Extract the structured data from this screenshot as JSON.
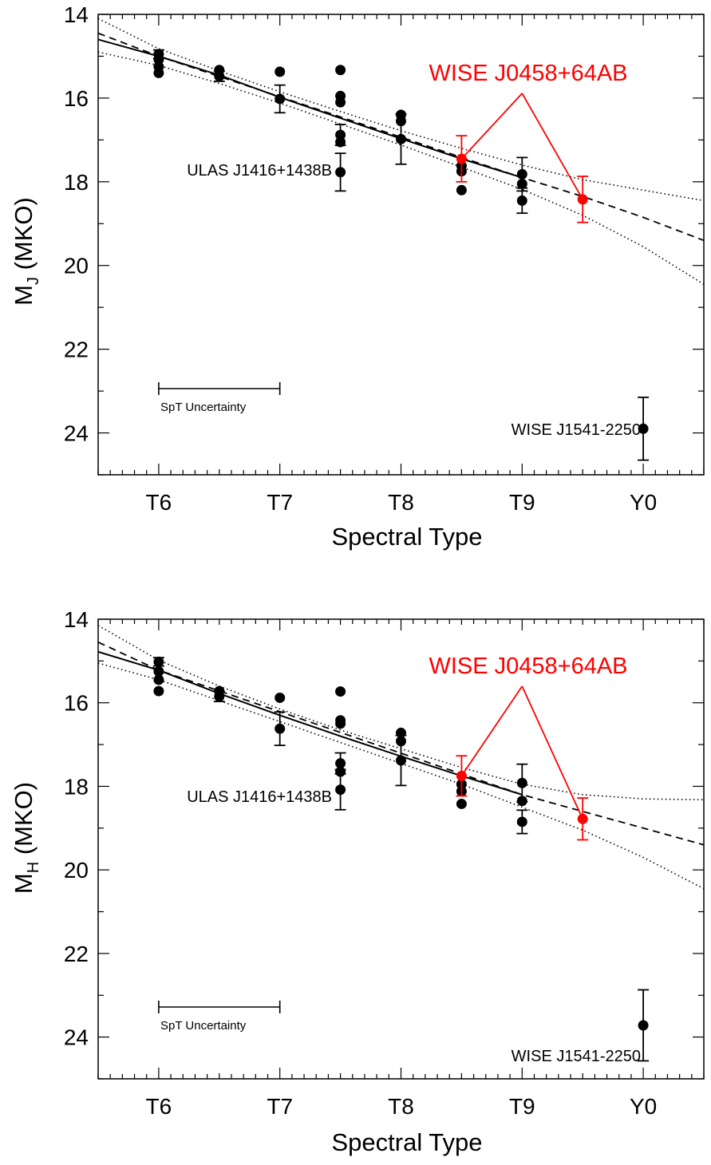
{
  "chart_data": [
    {
      "type": "scatter",
      "panel": "top",
      "xlabel": "Spectral Type",
      "ylabel": "M",
      "ylabel_sub": "J",
      "ylabel_suffix": " (MKO)",
      "xlim": [
        5.5,
        10.5
      ],
      "ylim": [
        25,
        14
      ],
      "y_inverted": true,
      "x_ticks": [
        {
          "value": 6,
          "label": "T6"
        },
        {
          "value": 7,
          "label": "T7"
        },
        {
          "value": 8,
          "label": "T8"
        },
        {
          "value": 9,
          "label": "T9"
        },
        {
          "value": 10,
          "label": "Y0"
        }
      ],
      "y_ticks": [
        {
          "value": 14,
          "label": "14"
        },
        {
          "value": 16,
          "label": "16"
        },
        {
          "value": 18,
          "label": "18"
        },
        {
          "value": 20,
          "label": "20"
        },
        {
          "value": 22,
          "label": "22"
        },
        {
          "value": 24,
          "label": "24"
        }
      ],
      "series": [
        {
          "color": "#000000",
          "points": [
            {
              "x": 6.0,
              "y": 14.95,
              "err": 0.1
            },
            {
              "x": 6.0,
              "y": 15.08
            },
            {
              "x": 6.0,
              "y": 15.25
            },
            {
              "x": 6.0,
              "y": 15.4
            },
            {
              "x": 6.5,
              "y": 15.33
            },
            {
              "x": 6.5,
              "y": 15.48,
              "err": 0.12
            },
            {
              "x": 7.0,
              "y": 15.37
            },
            {
              "x": 7.0,
              "y": 16.02,
              "err": 0.33
            },
            {
              "x": 7.5,
              "y": 15.33
            },
            {
              "x": 7.5,
              "y": 15.95
            },
            {
              "x": 7.5,
              "y": 16.1
            },
            {
              "x": 7.5,
              "y": 16.88,
              "err": 0.25
            },
            {
              "x": 7.5,
              "y": 17.05
            },
            {
              "x": 7.5,
              "y": 17.77,
              "err": 0.45
            },
            {
              "x": 8.0,
              "y": 16.4
            },
            {
              "x": 8.0,
              "y": 16.55
            },
            {
              "x": 8.0,
              "y": 16.98,
              "err": 0.6
            },
            {
              "x": 8.5,
              "y": 17.62
            },
            {
              "x": 8.5,
              "y": 17.75
            },
            {
              "x": 8.5,
              "y": 18.2
            },
            {
              "x": 9.0,
              "y": 17.82,
              "err": 0.4
            },
            {
              "x": 9.0,
              "y": 18.05
            },
            {
              "x": 9.0,
              "y": 18.45,
              "err": 0.3
            },
            {
              "x": 10.0,
              "y": 23.9,
              "err": 0.75
            }
          ]
        },
        {
          "name": "WISE J0458+64AB",
          "color": "#ff0000",
          "points": [
            {
              "x": 8.5,
              "y": 17.45,
              "err": 0.55
            },
            {
              "x": 9.5,
              "y": 18.42,
              "err": 0.55
            }
          ]
        }
      ],
      "fit": {
        "solid": [
          [
            5.5,
            14.6
          ],
          [
            6.0,
            15.0
          ],
          [
            6.5,
            15.45
          ],
          [
            7.0,
            15.98
          ],
          [
            7.5,
            16.48
          ],
          [
            8.0,
            16.97
          ],
          [
            8.5,
            17.45
          ],
          [
            9.0,
            17.9
          ]
        ],
        "dashed": [
          [
            5.5,
            14.45
          ],
          [
            6.0,
            15.0
          ],
          [
            9.0,
            17.9
          ],
          [
            9.5,
            18.35
          ],
          [
            10.0,
            18.85
          ],
          [
            10.5,
            19.4
          ]
        ],
        "dotted_upper": [
          [
            5.5,
            14.1
          ],
          [
            6.0,
            14.82
          ],
          [
            6.5,
            15.35
          ],
          [
            7.0,
            15.85
          ],
          [
            7.5,
            16.32
          ],
          [
            8.0,
            16.78
          ],
          [
            8.5,
            17.2
          ],
          [
            9.0,
            17.6
          ],
          [
            9.5,
            17.95
          ],
          [
            10.0,
            18.2
          ],
          [
            10.5,
            18.45
          ]
        ],
        "dotted_lower": [
          [
            5.5,
            14.9
          ],
          [
            6.0,
            15.22
          ],
          [
            6.5,
            15.65
          ],
          [
            7.0,
            16.12
          ],
          [
            7.5,
            16.62
          ],
          [
            8.0,
            17.12
          ],
          [
            8.5,
            17.65
          ],
          [
            9.0,
            18.18
          ],
          [
            9.5,
            18.8
          ],
          [
            10.0,
            19.55
          ],
          [
            10.5,
            20.45
          ]
        ]
      },
      "annotations": {
        "wise_j0458": "WISE J0458+64AB",
        "ulas": "ULAS J1416+1438B",
        "wise_j1541": "WISE J1541-2250",
        "spt_uncertainty": "SpT Uncertainty"
      }
    },
    {
      "type": "scatter",
      "panel": "bottom",
      "xlabel": "Spectral Type",
      "ylabel": "M",
      "ylabel_sub": "H",
      "ylabel_suffix": " (MKO)",
      "xlim": [
        5.5,
        10.5
      ],
      "ylim": [
        25,
        14
      ],
      "y_inverted": true,
      "x_ticks": [
        {
          "value": 6,
          "label": "T6"
        },
        {
          "value": 7,
          "label": "T7"
        },
        {
          "value": 8,
          "label": "T8"
        },
        {
          "value": 9,
          "label": "T9"
        },
        {
          "value": 10,
          "label": "Y0"
        }
      ],
      "y_ticks": [
        {
          "value": 14,
          "label": "14"
        },
        {
          "value": 16,
          "label": "16"
        },
        {
          "value": 18,
          "label": "18"
        },
        {
          "value": 20,
          "label": "20"
        },
        {
          "value": 22,
          "label": "22"
        },
        {
          "value": 24,
          "label": "24"
        }
      ],
      "series": [
        {
          "color": "#000000",
          "points": [
            {
              "x": 6.0,
              "y": 15.02,
              "err": 0.1
            },
            {
              "x": 6.0,
              "y": 15.25
            },
            {
              "x": 6.0,
              "y": 15.45
            },
            {
              "x": 6.0,
              "y": 15.72
            },
            {
              "x": 6.5,
              "y": 15.72
            },
            {
              "x": 6.5,
              "y": 15.85,
              "err": 0.12
            },
            {
              "x": 7.0,
              "y": 15.88
            },
            {
              "x": 7.0,
              "y": 16.62,
              "err": 0.4
            },
            {
              "x": 7.5,
              "y": 15.73
            },
            {
              "x": 7.5,
              "y": 16.42
            },
            {
              "x": 7.5,
              "y": 16.5
            },
            {
              "x": 7.5,
              "y": 17.45,
              "err": 0.25
            },
            {
              "x": 7.5,
              "y": 17.65
            },
            {
              "x": 7.5,
              "y": 18.08,
              "err": 0.48
            },
            {
              "x": 8.0,
              "y": 16.72
            },
            {
              "x": 8.0,
              "y": 16.92
            },
            {
              "x": 8.0,
              "y": 17.38,
              "err": 0.6
            },
            {
              "x": 8.5,
              "y": 17.95
            },
            {
              "x": 8.5,
              "y": 18.12
            },
            {
              "x": 8.5,
              "y": 18.42
            },
            {
              "x": 9.0,
              "y": 17.92,
              "err": 0.45
            },
            {
              "x": 9.0,
              "y": 18.35
            },
            {
              "x": 9.0,
              "y": 18.85,
              "err": 0.28
            },
            {
              "x": 10.0,
              "y": 23.72,
              "err": 0.85
            }
          ]
        },
        {
          "name": "WISE J0458+64AB",
          "color": "#ff0000",
          "points": [
            {
              "x": 8.5,
              "y": 17.75,
              "err": 0.48
            },
            {
              "x": 9.5,
              "y": 18.78,
              "err": 0.5
            }
          ]
        }
      ],
      "fit": {
        "solid": [
          [
            5.5,
            14.78
          ],
          [
            6.0,
            15.22
          ],
          [
            6.5,
            15.78
          ],
          [
            7.0,
            16.3
          ],
          [
            7.5,
            16.8
          ],
          [
            8.0,
            17.28
          ],
          [
            8.5,
            17.75
          ],
          [
            9.0,
            18.2
          ]
        ],
        "dashed": [
          [
            5.5,
            14.55
          ],
          [
            6.0,
            15.22
          ],
          [
            9.0,
            18.2
          ],
          [
            9.5,
            18.6
          ],
          [
            10.0,
            19.0
          ],
          [
            10.5,
            19.4
          ]
        ],
        "dotted_upper": [
          [
            5.5,
            14.15
          ],
          [
            6.0,
            14.98
          ],
          [
            6.5,
            15.6
          ],
          [
            7.0,
            16.15
          ],
          [
            7.5,
            16.65
          ],
          [
            8.0,
            17.1
          ],
          [
            8.5,
            17.55
          ],
          [
            9.0,
            17.95
          ],
          [
            9.5,
            18.2
          ],
          [
            10.0,
            18.3
          ],
          [
            10.5,
            18.32
          ]
        ],
        "dotted_lower": [
          [
            5.5,
            15.05
          ],
          [
            6.0,
            15.45
          ],
          [
            6.5,
            15.95
          ],
          [
            7.0,
            16.45
          ],
          [
            7.5,
            16.95
          ],
          [
            8.0,
            17.45
          ],
          [
            8.5,
            17.95
          ],
          [
            9.0,
            18.5
          ],
          [
            9.5,
            19.05
          ],
          [
            10.0,
            19.7
          ],
          [
            10.5,
            20.45
          ]
        ]
      },
      "annotations": {
        "wise_j0458": "WISE J0458+64AB",
        "ulas": "ULAS J1416+1438B",
        "wise_j1541": "WISE J1541-2250",
        "spt_uncertainty": "SpT Uncertainty"
      }
    }
  ]
}
